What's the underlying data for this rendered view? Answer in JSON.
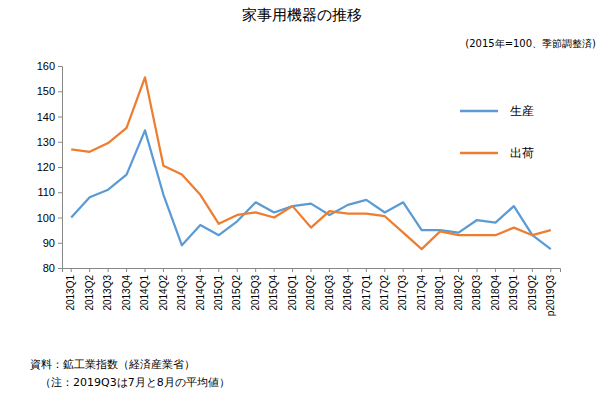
{
  "chart_data": {
    "type": "line",
    "title": "家事用機器の推移",
    "subtitle": "(2015年=100、季節調整済)",
    "categories": [
      "2013Q1",
      "2013Q2",
      "2013Q3",
      "2013Q4",
      "2014Q1",
      "2014Q2",
      "2014Q3",
      "2014Q4",
      "2015Q1",
      "2015Q2",
      "2015Q3",
      "2015Q4",
      "2016Q1",
      "2016Q2",
      "2016Q3",
      "2016Q4",
      "2017Q1",
      "2017Q2",
      "2017Q3",
      "2017Q4",
      "2018Q1",
      "2018Q2",
      "2018Q3",
      "2018Q4",
      "2019Q1",
      "2019Q2",
      "p2019Q3"
    ],
    "series": [
      {
        "name": "生産",
        "color": "#5b9bd5",
        "values": [
          100,
          108,
          111,
          117,
          134.5,
          109,
          89,
          97,
          93,
          98.5,
          106,
          102,
          104.5,
          105.5,
          101,
          105,
          107,
          102,
          106,
          95,
          95,
          94,
          99,
          98,
          104.5,
          93,
          87.5
        ]
      },
      {
        "name": "出荷",
        "color": "#ed7d31",
        "values": [
          127,
          126,
          129.5,
          135.5,
          155.5,
          120.5,
          117,
          109,
          97.5,
          101,
          102,
          100,
          104.5,
          96,
          102.5,
          101.5,
          101.5,
          100.5,
          94,
          87.5,
          94.5,
          93,
          93,
          93,
          96,
          93,
          95
        ]
      }
    ],
    "ylim": [
      80,
      160
    ],
    "yticks": [
      80,
      90,
      100,
      110,
      120,
      130,
      140,
      150,
      160
    ],
    "grid": false,
    "legend": "right",
    "annotations": [
      "資料：鉱工業指数（経済産業省）",
      "（注：2019Q3は7月と8月の平均値）"
    ]
  }
}
